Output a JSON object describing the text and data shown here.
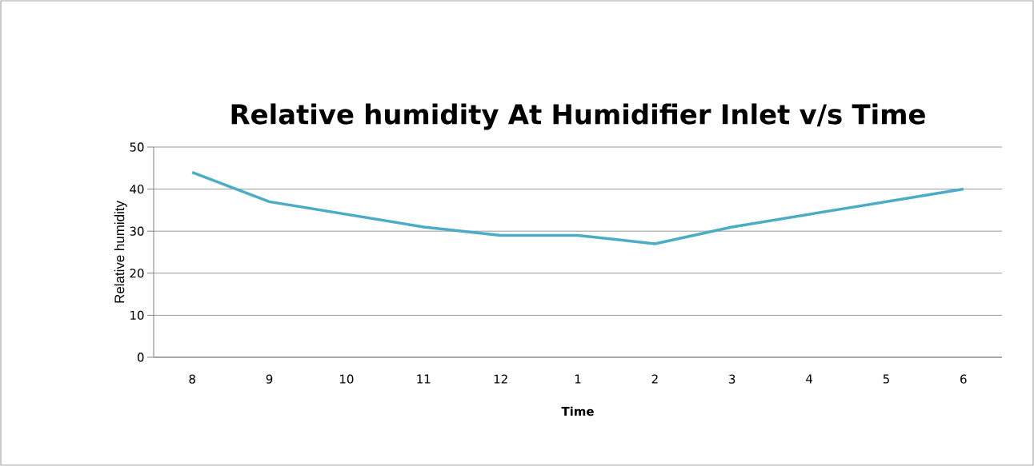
{
  "chart_data": {
    "type": "line",
    "title": "Relative humidity At Humidifier Inlet v/s Time",
    "xlabel": "Time",
    "ylabel": "Relative humidity",
    "categories": [
      "8",
      "9",
      "10",
      "11",
      "12",
      "1",
      "2",
      "3",
      "4",
      "5",
      "6"
    ],
    "series": [
      {
        "color": "#4bacc6",
        "values": [
          44,
          37,
          34,
          31,
          29,
          29,
          27,
          31,
          34,
          37,
          40
        ]
      }
    ],
    "ylim": [
      0,
      50
    ],
    "yticks": [
      0,
      10,
      20,
      30,
      40,
      50
    ],
    "grid": "y",
    "legend": false,
    "marker": "none",
    "line_style": "solid"
  }
}
